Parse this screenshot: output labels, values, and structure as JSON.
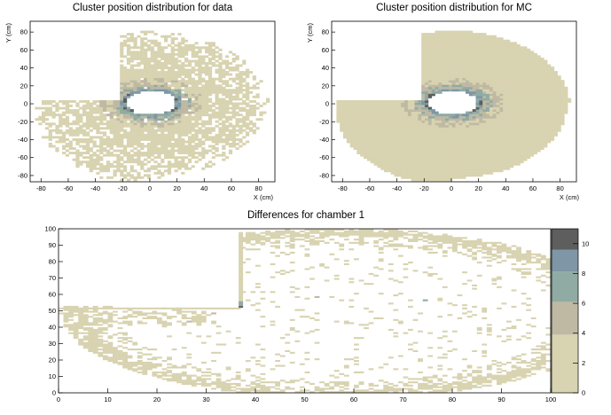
{
  "palette": [
    "#d8d3b0",
    "#bfb9a4",
    "#8faba3",
    "#7e96a6",
    "#5e5e5e"
  ],
  "chart_data": [
    {
      "type": "heatmap",
      "title": "Cluster position distribution for data",
      "xlabel": "X (cm)",
      "ylabel": "Y (cm)",
      "xlim": [
        -88,
        92
      ],
      "ylim": [
        -87,
        92
      ],
      "xticks": [
        -80,
        -60,
        -40,
        -20,
        0,
        20,
        40,
        60,
        80
      ],
      "yticks": [
        -80,
        -60,
        -40,
        -20,
        0,
        20,
        40,
        60,
        80
      ],
      "hole": {
        "cx": 0,
        "cy": 0,
        "rx": 18,
        "ry": 13
      },
      "occupancy": "sparse",
      "grid": false
    },
    {
      "type": "heatmap",
      "title": "Cluster position distribution for MC",
      "xlabel": "X (cm)",
      "ylabel": "Y (cm)",
      "xlim": [
        -88,
        92
      ],
      "ylim": [
        -87,
        92
      ],
      "xticks": [
        -80,
        -60,
        -40,
        -20,
        0,
        20,
        40,
        60,
        80
      ],
      "yticks": [
        -80,
        -60,
        -40,
        -20,
        0,
        20,
        40,
        60,
        80
      ],
      "hole": {
        "cx": 0,
        "cy": 0,
        "rx": 18,
        "ry": 13
      },
      "occupancy": "dense",
      "grid": false
    },
    {
      "type": "heatmap",
      "title": "Differences for chamber 1",
      "xlabel": "",
      "ylabel": "",
      "xlim": [
        0,
        100
      ],
      "ylim": [
        0,
        100
      ],
      "xticks": [
        0,
        10,
        20,
        30,
        40,
        50,
        60,
        70,
        80,
        90,
        100
      ],
      "yticks": [
        0,
        10,
        20,
        30,
        40,
        50,
        60,
        70,
        80,
        90,
        100
      ],
      "zlim": [
        0,
        11
      ],
      "zticks": [
        0,
        2,
        4,
        6,
        8,
        10
      ],
      "colorbar_bands": [
        0,
        3.9,
        6.1,
        8.1,
        9.6,
        11
      ],
      "grid": false
    }
  ]
}
